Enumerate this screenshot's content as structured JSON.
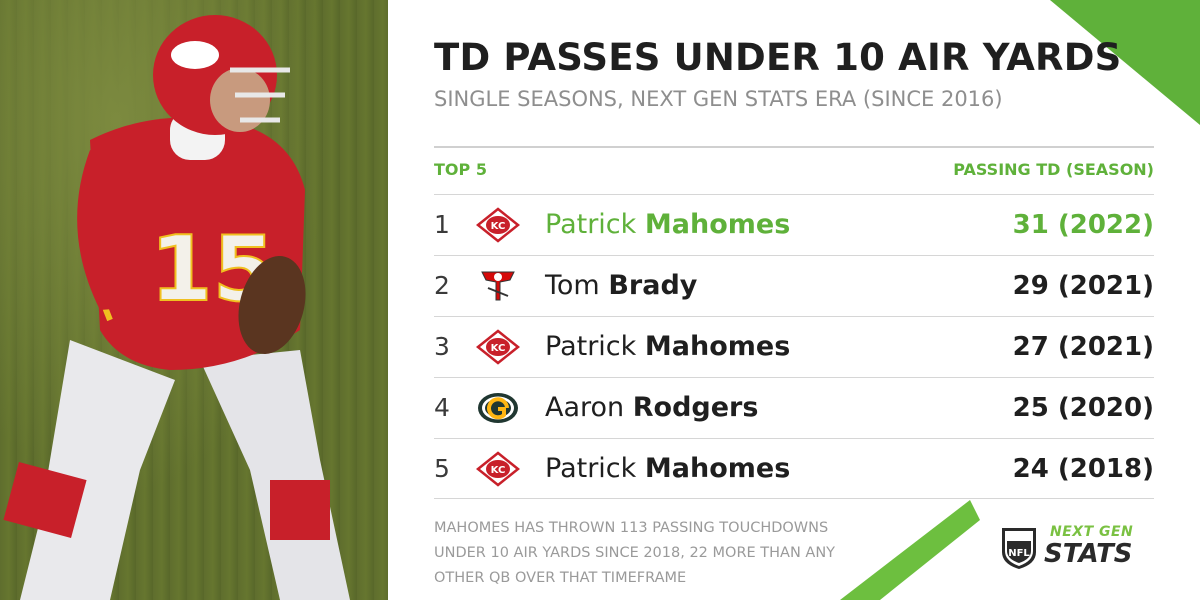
{
  "title": "TD PASSES UNDER 10 AIR YARDS",
  "subtitle": "SINGLE SEASONS, NEXT GEN STATS ERA (SINCE 2016)",
  "table": {
    "col_left": "TOP 5",
    "col_right": "PASSING TD (SEASON)",
    "rows": [
      {
        "rank": "1",
        "first": "Patrick",
        "last": "Mahomes",
        "value": "31 (2022)",
        "logo": "chiefs-logo-icon"
      },
      {
        "rank": "2",
        "first": "Tom",
        "last": "Brady",
        "value": "29 (2021)",
        "logo": "buccaneers-logo-icon"
      },
      {
        "rank": "3",
        "first": "Patrick",
        "last": "Mahomes",
        "value": "27 (2021)",
        "logo": "chiefs-logo-icon"
      },
      {
        "rank": "4",
        "first": "Aaron",
        "last": "Rodgers",
        "value": "25 (2020)",
        "logo": "packers-logo-icon"
      },
      {
        "rank": "5",
        "first": "Patrick",
        "last": "Mahomes",
        "value": "24 (2018)",
        "logo": "chiefs-logo-icon"
      }
    ]
  },
  "footnote": "MAHOMES HAS THROWN 113 PASSING TOUCHDOWNS UNDER 10 AIR YARDS SINCE 2018, 22 MORE THAN ANY OTHER QB OVER THAT TIMEFRAME",
  "brand": {
    "line1": "NEXT GEN",
    "line2": "STATS",
    "shield_text": "NFL"
  },
  "photo": {
    "jersey_number": "15"
  },
  "colors": {
    "accent_green": "#5fb13a",
    "text_dark": "#1f1f1f",
    "text_gray": "#8e8e8e"
  }
}
